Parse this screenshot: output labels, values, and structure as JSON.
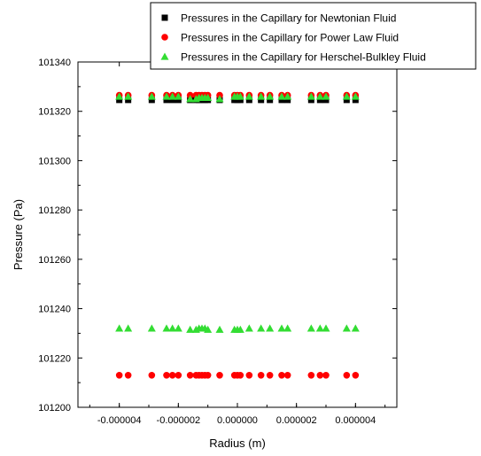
{
  "chart_data": {
    "type": "scatter",
    "xlabel": "Radius (m)",
    "ylabel": "Pressure (Pa)",
    "xlim": [
      -5.4e-06,
      5.4e-06
    ],
    "ylim": [
      101200,
      101340
    ],
    "xticks": [
      -4e-06,
      -2e-06,
      0.0,
      2e-06,
      4e-06
    ],
    "xtick_labels": [
      "-0.000004",
      "-0.000002",
      "0.000000",
      "0.000002",
      "0.000004"
    ],
    "yticks": [
      101200,
      101220,
      101240,
      101260,
      101280,
      101300,
      101320,
      101340
    ],
    "ytick_labels": [
      "101200",
      "101220",
      "101240",
      "101260",
      "101280",
      "101300",
      "101320",
      "101340"
    ],
    "grid": false,
    "legend_position": "top-right",
    "x": [
      -4e-06,
      -3.7e-06,
      -2.9e-06,
      -2.4e-06,
      -2.2e-06,
      -2e-06,
      -1.6e-06,
      -1.4e-06,
      -1.3e-06,
      -1.2e-06,
      -1.1e-06,
      -1e-06,
      -6e-07,
      -1e-07,
      0.0,
      1e-07,
      4e-07,
      8e-07,
      1.1e-06,
      1.5e-06,
      1.7e-06,
      2.5e-06,
      2.8e-06,
      3e-06,
      3.7e-06,
      4e-06
    ],
    "series": [
      {
        "name": "Pressures in the Capillary for Newtonian Fluid",
        "marker": "square",
        "color": "#000000",
        "values": [
          101324.6,
          101324.6,
          101324.6,
          101324.6,
          101324.6,
          101324.6,
          101324.6,
          101324.6,
          101324.6,
          101324.6,
          101324.6,
          101324.6,
          101324.6,
          101324.6,
          101324.6,
          101324.6,
          101324.6,
          101324.6,
          101324.6,
          101324.6,
          101324.6,
          101324.6,
          101324.6,
          101324.6,
          101324.6,
          101324.6
        ]
      },
      {
        "name": "Pressures in the Capillary for Power Law Fluid",
        "marker": "circle",
        "color": "#ff0000",
        "values": [
          101326.5,
          101326.5,
          101326.5,
          101326.5,
          101326.5,
          101326.5,
          101326.5,
          101326.5,
          101326.5,
          101326.5,
          101326.5,
          101326.5,
          101326.5,
          101326.5,
          101326.5,
          101326.5,
          101326.5,
          101326.5,
          101326.5,
          101326.5,
          101326.5,
          101326.5,
          101326.5,
          101326.5,
          101326.5,
          101326.5
        ]
      },
      {
        "name": "Pressures in the Capillary for Power Law Fluid",
        "marker": "circle",
        "color": "#ff0000",
        "values": [
          101213,
          101213,
          101213,
          101213,
          101213,
          101213,
          101213,
          101213,
          101213,
          101213,
          101213,
          101213,
          101213,
          101213,
          101213,
          101213,
          101213,
          101213,
          101213,
          101213,
          101213,
          101213,
          101213,
          101213,
          101213,
          101213
        ]
      },
      {
        "name": "Pressures in the Capillary for Herschel-Bulkley Fluid",
        "marker": "triangle",
        "color": "#33dd33",
        "values": [
          101326,
          101326,
          101326,
          101326,
          101326,
          101326,
          101325,
          101325,
          101325.5,
          101325.5,
          101325.5,
          101325.5,
          101325,
          101326,
          101326,
          101326,
          101326,
          101326,
          101326,
          101326,
          101326,
          101326,
          101326,
          101326,
          101326,
          101326
        ]
      },
      {
        "name": "Pressures in the Capillary for Herschel-Bulkley Fluid",
        "marker": "triangle",
        "color": "#33dd33",
        "values": [
          101232,
          101232,
          101232,
          101232,
          101232,
          101232,
          101231.5,
          101231.5,
          101232,
          101232,
          101232,
          101231.5,
          101231.5,
          101231.5,
          101231.5,
          101231.5,
          101232,
          101232,
          101232,
          101232,
          101232,
          101232,
          101232,
          101232,
          101232,
          101232
        ]
      }
    ],
    "legend": [
      {
        "label": "Pressures in the Capillary for Newtonian Fluid",
        "marker": "square",
        "color": "#000000"
      },
      {
        "label": "Pressures in the Capillary for Power Law Fluid",
        "marker": "circle",
        "color": "#ff0000"
      },
      {
        "label": "Pressures in the Capillary for Herschel-Bulkley Fluid",
        "marker": "triangle",
        "color": "#33dd33"
      }
    ]
  }
}
